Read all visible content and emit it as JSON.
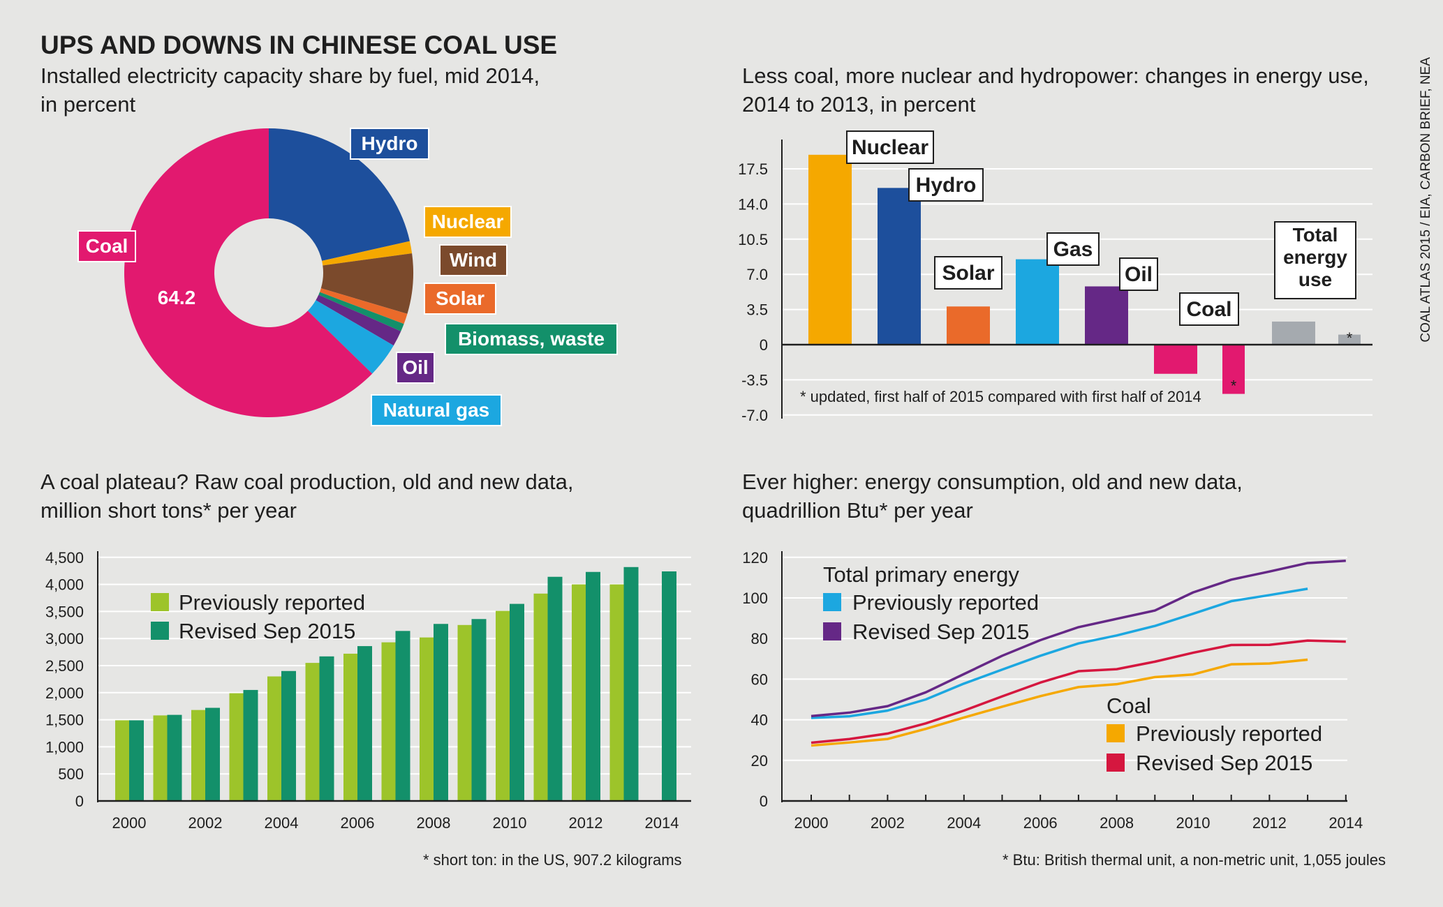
{
  "title": "UPS AND DOWNS IN CHINESE COAL USE",
  "source": "COAL ATLAS 2015 / EIA, CARBON BRIEF, NEA",
  "panels": {
    "pie": {
      "subtitle": [
        "Installed electricity capacity share by fuel, mid 2014,",
        "in percent"
      ]
    },
    "bars": {
      "subtitle": [
        "Less coal, more nuclear and hydropower: changes in energy use,",
        "2014 to 2013, in percent"
      ],
      "footnote": "* updated, first half of 2015 compared with first half of 2014"
    },
    "production": {
      "subtitle": [
        "A coal plateau? Raw coal production, old and new data,",
        "million short tons* per year"
      ],
      "footnote": "* short ton: in the US, 907.2 kilograms"
    },
    "consumption": {
      "subtitle": [
        "Ever higher: energy consumption, old and new data,",
        "quadrillion Btu* per year"
      ],
      "footnote": "* Btu: British thermal unit, a non-metric unit, 1,055 joules"
    }
  },
  "chart_data": [
    {
      "type": "pie",
      "title": "Installed electricity capacity share by fuel, mid 2014, in percent",
      "slices": [
        {
          "label": "Hydro",
          "value": 22.0,
          "color": "#1d4f9c"
        },
        {
          "label": "Nuclear",
          "value": 1.4,
          "color": "#f5a800"
        },
        {
          "label": "Wind",
          "value": 6.9,
          "color": "#7b4a2c"
        },
        {
          "label": "Solar",
          "value": 1.2,
          "color": "#ea6a2a"
        },
        {
          "label": "Biomass, waste",
          "value": 0.9,
          "color": "#13906a"
        },
        {
          "label": "Oil",
          "value": 1.8,
          "color": "#652886"
        },
        {
          "label": "Natural gas",
          "value": 4.0,
          "color": "#1ca7e0"
        },
        {
          "label": "Coal",
          "value": 64.2,
          "color": "#e2196f"
        }
      ],
      "value_labels": [
        "64.2"
      ]
    },
    {
      "type": "bar",
      "title": "Less coal, more nuclear and hydropower: changes in energy use, 2014 to 2013, in percent",
      "ylim": [
        -7.0,
        19.5
      ],
      "yticks": [
        "17.5",
        "14.0",
        "10.5",
        "7.0",
        "3.5",
        "0",
        "-3.5",
        "-7.0"
      ],
      "yticks_values": [
        17.5,
        14.0,
        10.5,
        7.0,
        3.5,
        0,
        -3.5,
        -7.0
      ],
      "bars": [
        {
          "label": "Nuclear",
          "value": 18.9,
          "color": "#f5a800",
          "labeled": true
        },
        {
          "label": "Hydro",
          "value": 15.6,
          "color": "#1d4f9c",
          "labeled": true
        },
        {
          "label": "Solar",
          "value": 3.8,
          "color": "#ea6a2a",
          "labeled": true
        },
        {
          "label": "Gas",
          "value": 8.5,
          "color": "#1ca7e0",
          "labeled": true
        },
        {
          "label": "Oil",
          "value": 5.8,
          "color": "#652886",
          "labeled": true
        },
        {
          "label": "Coal",
          "value": -2.9,
          "color": "#e2196f",
          "labeled": true
        },
        {
          "label": "Coal",
          "value": -4.9,
          "color": "#e2196f",
          "labeled": false,
          "mark": "*"
        },
        {
          "label": "Total energy use",
          "value": 2.3,
          "color": "#a5aaaf",
          "labeled": true
        },
        {
          "label": "Total energy use",
          "value": 1.0,
          "color": "#a5aaaf",
          "labeled": false,
          "mark": "*"
        }
      ]
    },
    {
      "type": "bar",
      "title": "A coal plateau? Raw coal production, old and new data, million short tons* per year",
      "categories": [
        2000,
        2001,
        2002,
        2003,
        2004,
        2005,
        2006,
        2007,
        2008,
        2009,
        2010,
        2011,
        2012,
        2013,
        2014
      ],
      "xtick_labels": [
        "2000",
        "2002",
        "2004",
        "2006",
        "2008",
        "2010",
        "2012",
        "2014"
      ],
      "ylim": [
        0,
        4500
      ],
      "yticks": [
        "4,500",
        "4,000",
        "3,500",
        "3,000",
        "2,500",
        "2,000",
        "1,500",
        "1,000",
        "500",
        "0"
      ],
      "yticks_values": [
        4500,
        4000,
        3500,
        3000,
        2500,
        2000,
        1500,
        1000,
        500,
        0
      ],
      "series": [
        {
          "name": "Previously reported",
          "color": "#9dc42a",
          "values": [
            1490,
            1580,
            1680,
            1990,
            2300,
            2550,
            2720,
            2930,
            3020,
            3250,
            3510,
            3830,
            4000,
            4000,
            null
          ]
        },
        {
          "name": "Revised Sep 2015",
          "color": "#13906a",
          "values": [
            1490,
            1590,
            1720,
            2050,
            2400,
            2670,
            2860,
            3140,
            3270,
            3360,
            3640,
            4140,
            4230,
            4320,
            4240
          ]
        }
      ]
    },
    {
      "type": "line",
      "title": "Ever higher: energy consumption, old and new data, quadrillion Btu* per year",
      "x": [
        2000,
        2001,
        2002,
        2003,
        2004,
        2005,
        2006,
        2007,
        2008,
        2009,
        2010,
        2011,
        2012,
        2013,
        2014
      ],
      "xtick_labels": [
        "2000",
        "2002",
        "2004",
        "2006",
        "2008",
        "2010",
        "2012",
        "2014"
      ],
      "ylim": [
        0,
        120
      ],
      "yticks": [
        "120",
        "100",
        "80",
        "60",
        "40",
        "20",
        "0"
      ],
      "yticks_values": [
        120,
        100,
        80,
        60,
        40,
        20,
        0
      ],
      "legend_groups": [
        "Total primary energy",
        "Coal"
      ],
      "series": [
        {
          "name": "Previously reported",
          "group": "Total primary energy",
          "color": "#1ca7e0",
          "values": [
            40.9,
            41.7,
            44.5,
            50,
            57.8,
            64.7,
            71.5,
            77.6,
            81.5,
            86.2,
            92.2,
            98.4,
            101.4,
            104.5,
            null
          ]
        },
        {
          "name": "Revised Sep 2015",
          "group": "Total primary energy",
          "color": "#652886",
          "values": [
            41.8,
            43.5,
            46.7,
            53.5,
            62.5,
            71.5,
            79.2,
            85.6,
            89.7,
            93.8,
            102.7,
            109,
            113,
            117.2,
            118.3
          ]
        },
        {
          "name": "Previously reported",
          "group": "Coal",
          "color": "#f5a800",
          "values": [
            27.3,
            28.8,
            30.5,
            35.5,
            41.1,
            46.4,
            51.6,
            56.1,
            57.5,
            61,
            62.3,
            67.3,
            67.7,
            69.6,
            null
          ]
        },
        {
          "name": "Revised Sep 2015",
          "group": "Coal",
          "color": "#d5173f",
          "values": [
            28.7,
            30.5,
            33.2,
            38.2,
            44.5,
            51.5,
            58.3,
            63.9,
            64.9,
            68.6,
            73,
            76.8,
            76.9,
            79,
            78.5
          ]
        }
      ]
    }
  ]
}
